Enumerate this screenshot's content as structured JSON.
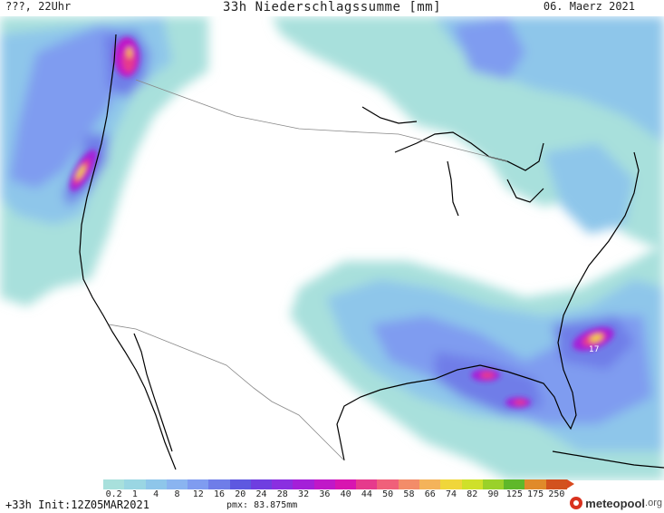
{
  "header": {
    "left_label": "???, 22Uhr",
    "title": "33h Niederschlagssumme [mm]",
    "date": "06. Maerz 2021"
  },
  "legend": {
    "ticks": [
      "0.2",
      "1",
      "4",
      "8",
      "12",
      "16",
      "20",
      "24",
      "28",
      "32",
      "36",
      "40",
      "44",
      "50",
      "58",
      "66",
      "74",
      "82",
      "90",
      "125",
      "175",
      "250"
    ],
    "colors": [
      "#a8e0dc",
      "#9ad6e3",
      "#8ec6ea",
      "#8ab4f0",
      "#7f9cf0",
      "#6f7de8",
      "#5e58e0",
      "#6f3ee0",
      "#8a2fe0",
      "#a420d8",
      "#c018c8",
      "#d815b0",
      "#e63a8c",
      "#f0607a",
      "#f38c69",
      "#f4b35a",
      "#f0d63a",
      "#cfe02a",
      "#9ad12a",
      "#5fb82a",
      "#e08a2a",
      "#d2521e"
    ]
  },
  "footer": {
    "run_info": "+33h Init:12Z05MAR2021",
    "pmax": "pmx: 83.875mm",
    "brand_main": "meteopool",
    "brand_tld": ".org"
  },
  "map": {
    "max_marker": "17"
  }
}
